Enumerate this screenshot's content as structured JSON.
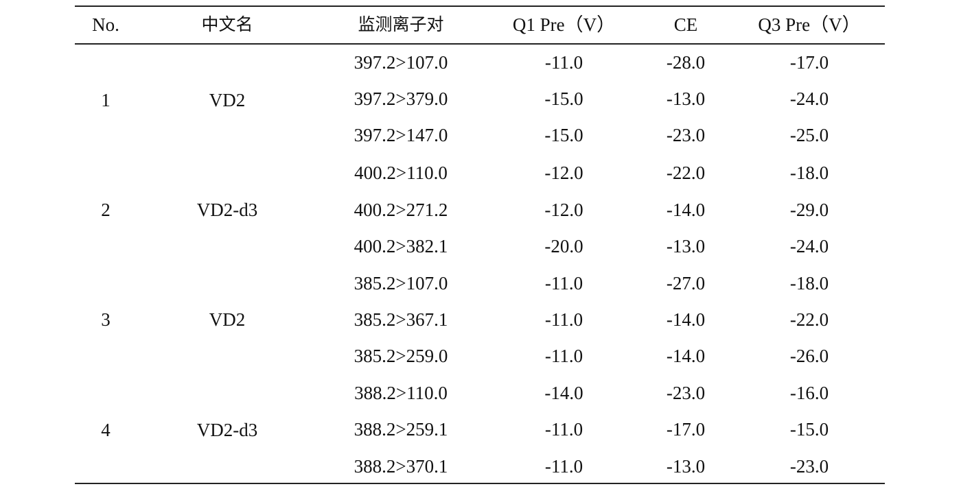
{
  "headers": [
    "No.",
    "中文名",
    "监测离子对",
    "Q1 Pre（V）",
    "CE",
    "Q3 Pre（V）"
  ],
  "groups": [
    {
      "no": "1",
      "name": "VD2",
      "rows": [
        {
          "ion_pair": "397.2>107.0",
          "q1_pre": "-11.0",
          "ce": "-28.0",
          "q3_pre": "-17.0"
        },
        {
          "ion_pair": "397.2>379.0",
          "q1_pre": "-15.0",
          "ce": "-13.0",
          "q3_pre": "-24.0"
        },
        {
          "ion_pair": "397.2>147.0",
          "q1_pre": "-15.0",
          "ce": "-23.0",
          "q3_pre": "-25.0"
        }
      ]
    },
    {
      "no": "2",
      "name": "VD2-d3",
      "rows": [
        {
          "ion_pair": "400.2>110.0",
          "q1_pre": "-12.0",
          "ce": "-22.0",
          "q3_pre": "-18.0"
        },
        {
          "ion_pair": "400.2>271.2",
          "q1_pre": "-12.0",
          "ce": "-14.0",
          "q3_pre": "-29.0"
        },
        {
          "ion_pair": "400.2>382.1",
          "q1_pre": "-20.0",
          "ce": "-13.0",
          "q3_pre": "-24.0"
        }
      ]
    },
    {
      "no": "3",
      "name": "VD2",
      "rows": [
        {
          "ion_pair": "385.2>107.0",
          "q1_pre": "-11.0",
          "ce": "-27.0",
          "q3_pre": "-18.0"
        },
        {
          "ion_pair": "385.2>367.1",
          "q1_pre": "-11.0",
          "ce": "-14.0",
          "q3_pre": "-22.0"
        },
        {
          "ion_pair": "385.2>259.0",
          "q1_pre": "-11.0",
          "ce": "-14.0",
          "q3_pre": "-26.0"
        }
      ]
    },
    {
      "no": "4",
      "name": "VD2-d3",
      "rows": [
        {
          "ion_pair": "388.2>110.0",
          "q1_pre": "-14.0",
          "ce": "-23.0",
          "q3_pre": "-16.0"
        },
        {
          "ion_pair": "388.2>259.1",
          "q1_pre": "-11.0",
          "ce": "-17.0",
          "q3_pre": "-15.0"
        },
        {
          "ion_pair": "388.2>370.1",
          "q1_pre": "-11.0",
          "ce": "-13.0",
          "q3_pre": "-23.0"
        }
      ]
    }
  ]
}
